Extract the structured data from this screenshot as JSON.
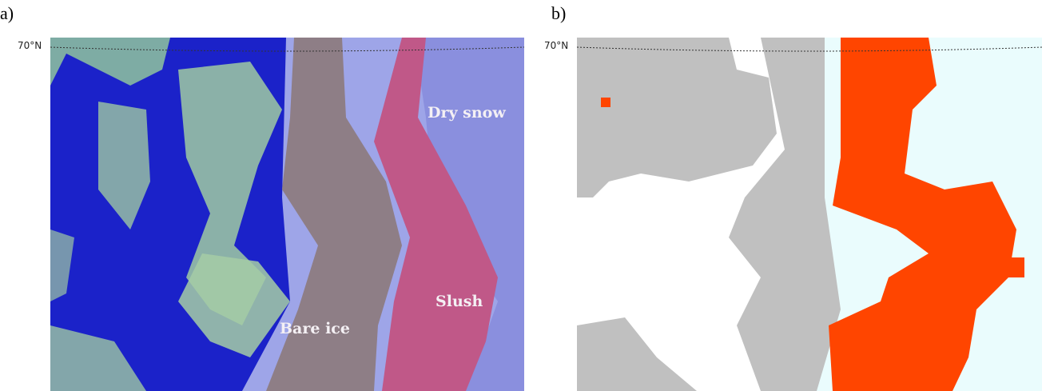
{
  "panels": [
    {
      "label": "a)",
      "latitude_label": "70°N",
      "annotations": [
        "Bare ice",
        "Slush",
        "Dry snow"
      ]
    },
    {
      "label": "b)",
      "latitude_label": "70°N"
    }
  ]
}
